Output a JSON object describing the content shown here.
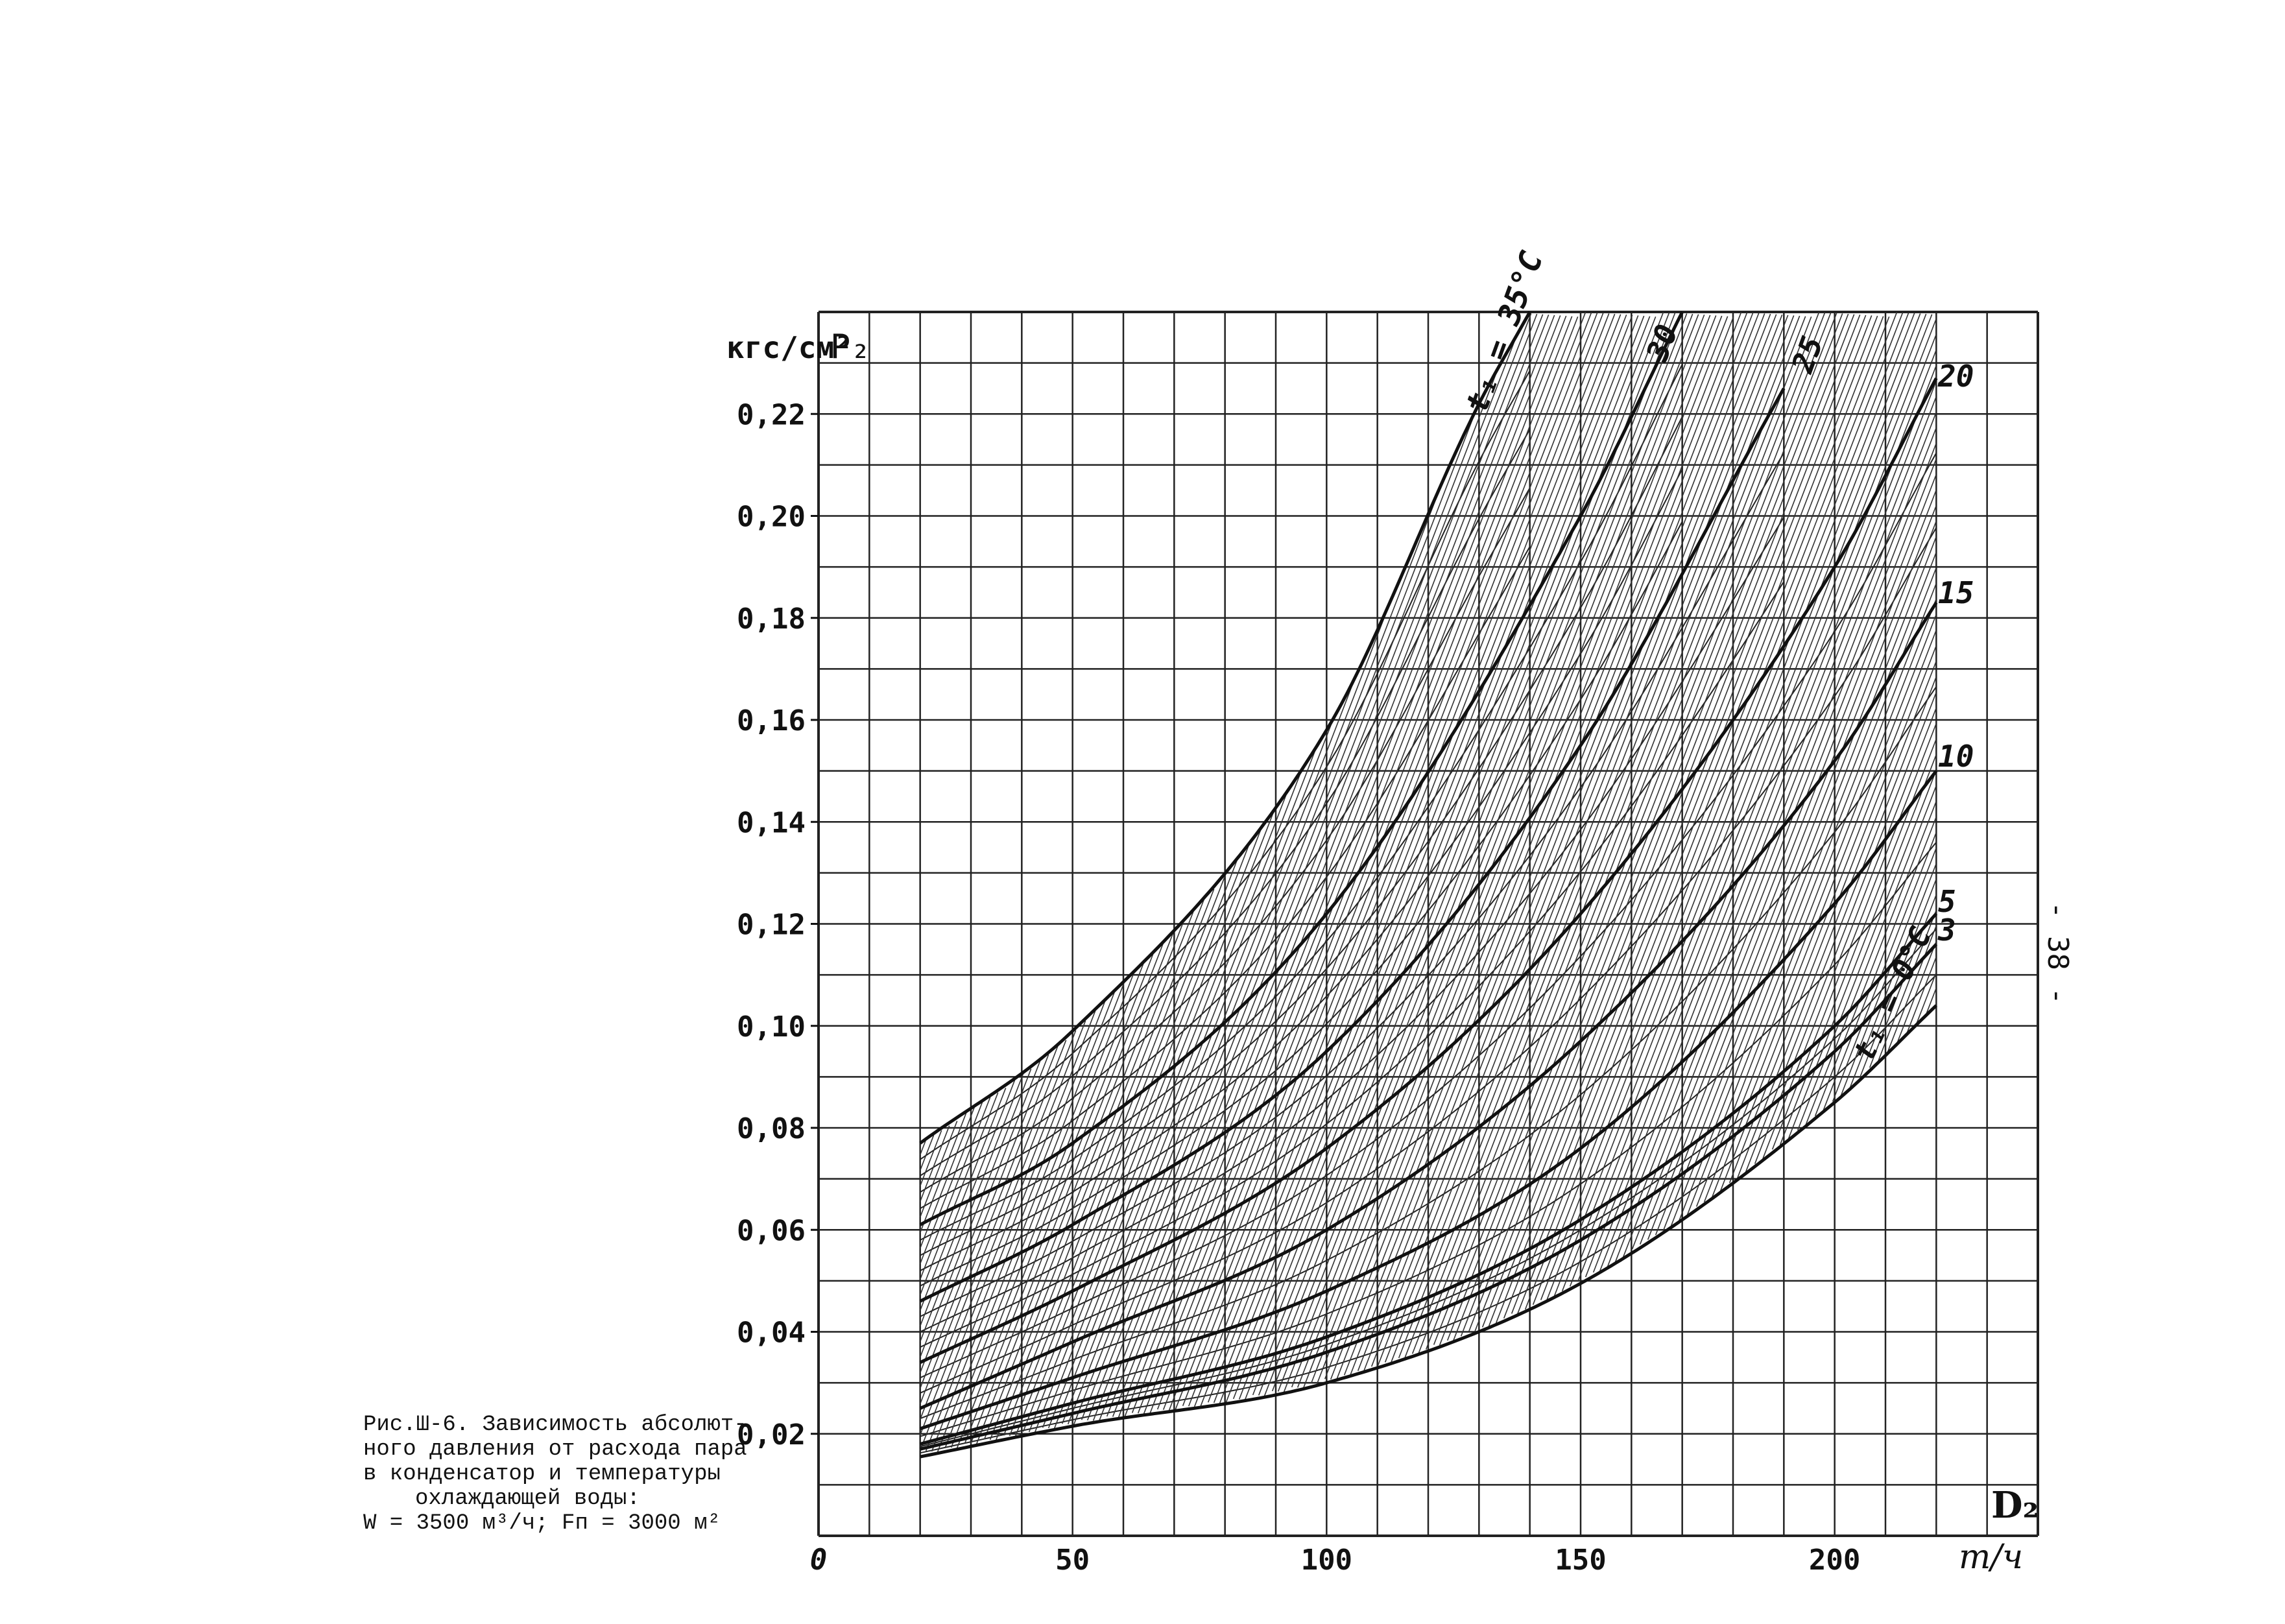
{
  "caption": {
    "line1": "Рис.Ш-6. Зависимость абсолют-",
    "line2": "ного давления от расхода пара",
    "line3": "в конденсатор и температуры",
    "line4": "охлаждающей воды:",
    "line5": "W = 3500 м³/ч; Fп = 3000 м²"
  },
  "page_number": "- 38 -",
  "chart_data": {
    "type": "line",
    "title": "",
    "y_unit": "кгс/см²",
    "ylabel": "P₂",
    "xlabel": "D₂",
    "x_unit": "т/ч",
    "xlim": [
      0,
      240
    ],
    "ylim": [
      0,
      0.24
    ],
    "grid": true,
    "grid_step": {
      "x": 10,
      "y": 0.01
    },
    "x_ticks": [
      {
        "value": 0,
        "label": "0"
      },
      {
        "value": 50,
        "label": "50"
      },
      {
        "value": 100,
        "label": "100"
      },
      {
        "value": 150,
        "label": "150"
      },
      {
        "value": 200,
        "label": "200"
      }
    ],
    "y_ticks": [
      {
        "value": 0.02,
        "label": "0,02"
      },
      {
        "value": 0.04,
        "label": "0,04"
      },
      {
        "value": 0.06,
        "label": "0,06"
      },
      {
        "value": 0.08,
        "label": "0,08"
      },
      {
        "value": 0.1,
        "label": "0,10"
      },
      {
        "value": 0.12,
        "label": "0,12"
      },
      {
        "value": 0.14,
        "label": "0,14"
      },
      {
        "value": 0.16,
        "label": "0,16"
      },
      {
        "value": 0.18,
        "label": "0,18"
      },
      {
        "value": 0.2,
        "label": "0,20"
      },
      {
        "value": 0.22,
        "label": "0,22"
      }
    ],
    "series": [
      {
        "name": "t₁ = 0°C",
        "x": [
          20,
          50,
          100,
          150,
          200,
          220
        ],
        "y": [
          0.0155,
          0.0215,
          0.03,
          0.0495,
          0.085,
          0.104
        ]
      },
      {
        "name": "3",
        "x": [
          20,
          50,
          100,
          150,
          200,
          220
        ],
        "y": [
          0.017,
          0.024,
          0.036,
          0.058,
          0.095,
          0.116
        ]
      },
      {
        "name": "5",
        "x": [
          20,
          50,
          100,
          150,
          200,
          220
        ],
        "y": [
          0.018,
          0.026,
          0.039,
          0.062,
          0.1,
          0.122
        ]
      },
      {
        "name": "10",
        "x": [
          20,
          50,
          100,
          150,
          200,
          220
        ],
        "y": [
          0.021,
          0.031,
          0.048,
          0.076,
          0.124,
          0.15
        ]
      },
      {
        "name": "15",
        "x": [
          20,
          50,
          100,
          150,
          200,
          220
        ],
        "y": [
          0.025,
          0.038,
          0.06,
          0.097,
          0.152,
          0.183
        ]
      },
      {
        "name": "20",
        "x": [
          20,
          50,
          100,
          150,
          200,
          220
        ],
        "y": [
          0.034,
          0.048,
          0.076,
          0.122,
          0.19,
          0.227
        ]
      },
      {
        "name": "25",
        "x": [
          20,
          50,
          100,
          150,
          190
        ],
        "y": [
          0.046,
          0.061,
          0.095,
          0.155,
          0.225
        ]
      },
      {
        "name": "30",
        "x": [
          20,
          50,
          100,
          150,
          170
        ],
        "y": [
          0.061,
          0.077,
          0.122,
          0.2,
          0.24
        ]
      },
      {
        "name": "t₁ = 35°C",
        "x": [
          20,
          50,
          100,
          130,
          140
        ],
        "y": [
          0.077,
          0.099,
          0.158,
          0.222,
          0.24
        ]
      }
    ]
  }
}
